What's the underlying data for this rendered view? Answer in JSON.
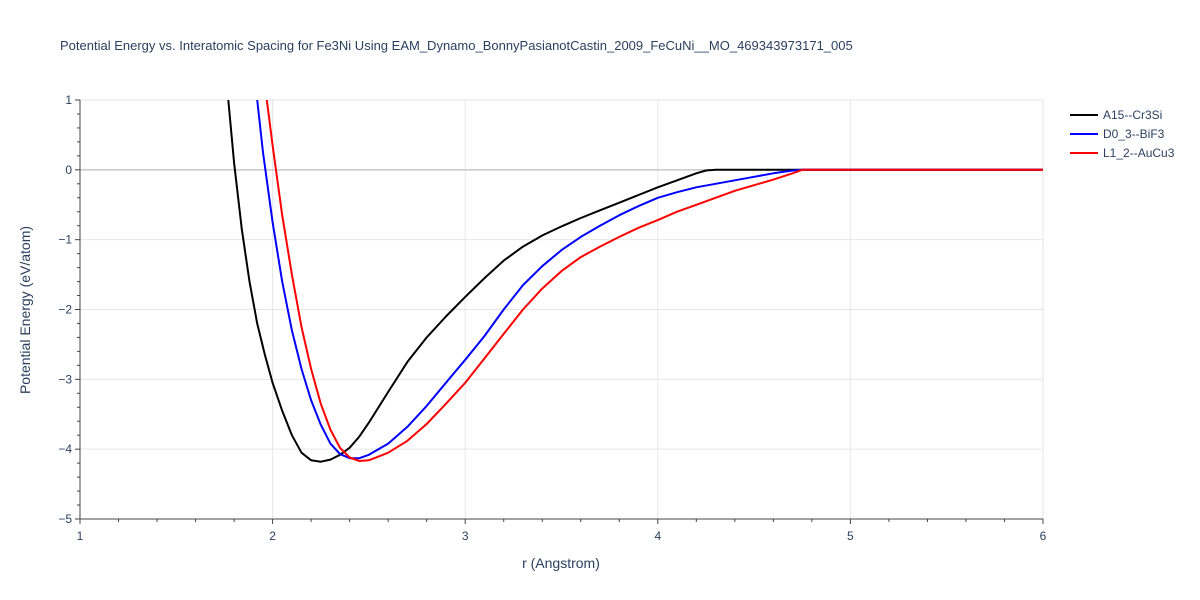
{
  "chart_data": {
    "type": "line",
    "title": "Potential Energy vs. Interatomic Spacing for Fe3Ni Using EAM_Dynamo_BonnyPasianotCastin_2009_FeCuNi__MO_469343973171_005",
    "xlabel": "r (Angstrom)",
    "ylabel": "Potential Energy (eV/atom)",
    "xlim": [
      1,
      6
    ],
    "ylim": [
      -5,
      1
    ],
    "xticks": [
      "1",
      "2",
      "3",
      "4",
      "5",
      "6"
    ],
    "yticks": [
      "1",
      "0",
      "−1",
      "−2",
      "−3",
      "−4",
      "−5"
    ],
    "grid": true,
    "legend_position": "top-right",
    "series": [
      {
        "name": "A15--Cr3Si",
        "color": "#000000",
        "x": [
          1.77,
          1.8,
          1.84,
          1.88,
          1.92,
          1.96,
          2.0,
          2.05,
          2.1,
          2.15,
          2.2,
          2.25,
          2.3,
          2.35,
          2.4,
          2.45,
          2.5,
          2.6,
          2.7,
          2.8,
          2.9,
          3.0,
          3.1,
          3.2,
          3.3,
          3.4,
          3.5,
          3.6,
          3.7,
          3.8,
          3.9,
          4.0,
          4.1,
          4.2,
          4.25,
          4.3,
          4.4,
          5.0,
          6.0
        ],
        "y": [
          1.0,
          0.1,
          -0.85,
          -1.6,
          -2.2,
          -2.65,
          -3.05,
          -3.45,
          -3.8,
          -4.05,
          -4.16,
          -4.18,
          -4.15,
          -4.08,
          -3.98,
          -3.82,
          -3.62,
          -3.18,
          -2.75,
          -2.4,
          -2.1,
          -1.82,
          -1.55,
          -1.3,
          -1.1,
          -0.94,
          -0.81,
          -0.69,
          -0.58,
          -0.47,
          -0.36,
          -0.25,
          -0.15,
          -0.05,
          -0.01,
          0.0,
          0.0,
          0.0,
          0.0
        ]
      },
      {
        "name": "D0_3--BiF3",
        "color": "#0000ff",
        "x": [
          1.92,
          1.95,
          2.0,
          2.05,
          2.1,
          2.15,
          2.2,
          2.25,
          2.3,
          2.35,
          2.4,
          2.45,
          2.5,
          2.6,
          2.7,
          2.8,
          2.9,
          3.0,
          3.1,
          3.2,
          3.3,
          3.4,
          3.5,
          3.6,
          3.7,
          3.8,
          3.9,
          4.0,
          4.1,
          4.2,
          4.3,
          4.4,
          4.5,
          4.6,
          4.7,
          4.75,
          5.0,
          6.0
        ],
        "y": [
          1.0,
          0.25,
          -0.75,
          -1.6,
          -2.3,
          -2.85,
          -3.3,
          -3.65,
          -3.92,
          -4.07,
          -4.13,
          -4.13,
          -4.08,
          -3.92,
          -3.68,
          -3.38,
          -3.05,
          -2.72,
          -2.38,
          -2.0,
          -1.65,
          -1.38,
          -1.15,
          -0.96,
          -0.8,
          -0.65,
          -0.52,
          -0.4,
          -0.32,
          -0.25,
          -0.2,
          -0.15,
          -0.1,
          -0.05,
          -0.01,
          0.0,
          0.0,
          0.0
        ]
      },
      {
        "name": "L1_2--AuCu3",
        "color": "#ff0000",
        "x": [
          1.97,
          2.0,
          2.05,
          2.1,
          2.15,
          2.2,
          2.25,
          2.3,
          2.35,
          2.4,
          2.45,
          2.5,
          2.6,
          2.7,
          2.8,
          2.9,
          3.0,
          3.1,
          3.2,
          3.3,
          3.4,
          3.5,
          3.6,
          3.7,
          3.8,
          3.9,
          4.0,
          4.1,
          4.2,
          4.3,
          4.4,
          4.5,
          4.6,
          4.7,
          4.75,
          5.0,
          6.0
        ],
        "y": [
          1.0,
          0.35,
          -0.65,
          -1.5,
          -2.25,
          -2.85,
          -3.35,
          -3.72,
          -3.98,
          -4.12,
          -4.17,
          -4.16,
          -4.05,
          -3.88,
          -3.64,
          -3.35,
          -3.05,
          -2.7,
          -2.35,
          -2.0,
          -1.7,
          -1.45,
          -1.25,
          -1.1,
          -0.96,
          -0.83,
          -0.72,
          -0.6,
          -0.5,
          -0.4,
          -0.3,
          -0.22,
          -0.14,
          -0.05,
          0.0,
          0.0,
          0.0
        ]
      }
    ]
  }
}
